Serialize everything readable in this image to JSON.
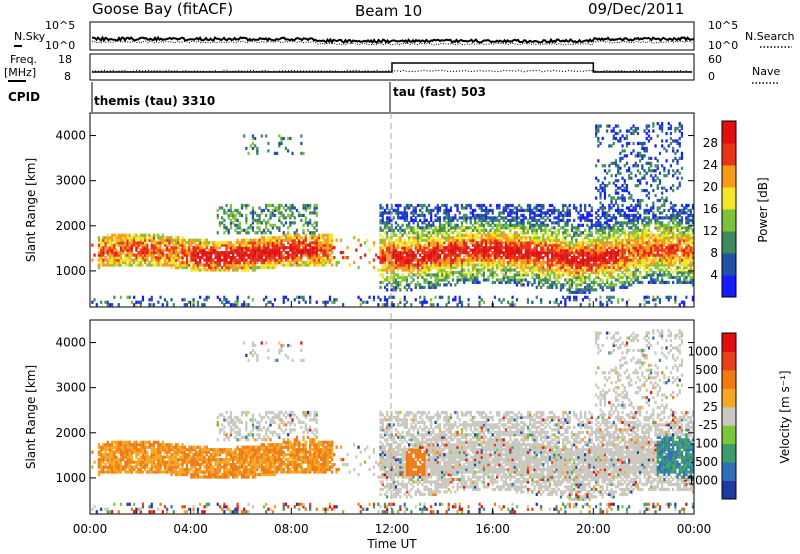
{
  "header": {
    "station": "Goose Bay (fitACF)",
    "beam": "Beam 10",
    "date": "09/Dec/2011"
  },
  "top_panel": {
    "left_label": "N.Sky",
    "left_ticks": [
      "10^5",
      "10^0"
    ],
    "right_label": "N.Search",
    "right_ticks": [
      "10^5",
      "10^0"
    ]
  },
  "freq_panel": {
    "left_label_1": "Freq.",
    "left_label_2": "[MHz]",
    "left_ticks": [
      "18",
      "8"
    ],
    "right_label": "Nave",
    "right_ticks": [
      "60",
      "0"
    ]
  },
  "cpid": {
    "label": "CPID",
    "segments": [
      {
        "label": "themis (tau) 3310",
        "start_hour": 0
      },
      {
        "label": "tau (fast) 503",
        "start_hour": 12
      }
    ]
  },
  "chart_data": [
    {
      "type": "heatmap",
      "title": "",
      "xlabel": "Time UT",
      "ylabel": "Slant Range [km]",
      "x_ticks": [
        "00:00",
        "04:00",
        "08:00",
        "12:00",
        "16:00",
        "20:00",
        "00:00"
      ],
      "y_ticks": [
        "1000",
        "2000",
        "3000",
        "4000"
      ],
      "ylim": [
        200,
        4500
      ],
      "colorbar_label": "Power [dB]",
      "colorbar_ticks": [
        "4",
        "8",
        "12",
        "16",
        "20",
        "24",
        "28"
      ],
      "colorbar_colors": [
        "#1a1aff",
        "#2050a8",
        "#3f8a5a",
        "#7ec13a",
        "#f2e62a",
        "#f79a1a",
        "#e8351a",
        "#e01010"
      ]
    },
    {
      "type": "heatmap",
      "title": "",
      "xlabel": "Time UT",
      "ylabel": "Slant Range [km]",
      "x_ticks": [
        "00:00",
        "04:00",
        "08:00",
        "12:00",
        "16:00",
        "20:00",
        "00:00"
      ],
      "y_ticks": [
        "1000",
        "2000",
        "3000",
        "4000"
      ],
      "ylim": [
        200,
        4500
      ],
      "colorbar_label": "Velocity [m s⁻¹]",
      "colorbar_ticks": [
        "1000",
        "500",
        "100",
        "25",
        "-25",
        "-100",
        "-500",
        "-1000"
      ],
      "colorbar_colors": [
        "#1c3aa0",
        "#2e6fb5",
        "#3d9c6a",
        "#7bc73a",
        "#c8c8c0",
        "#f5a623",
        "#f07a12",
        "#e8401a",
        "#e01010"
      ]
    }
  ]
}
